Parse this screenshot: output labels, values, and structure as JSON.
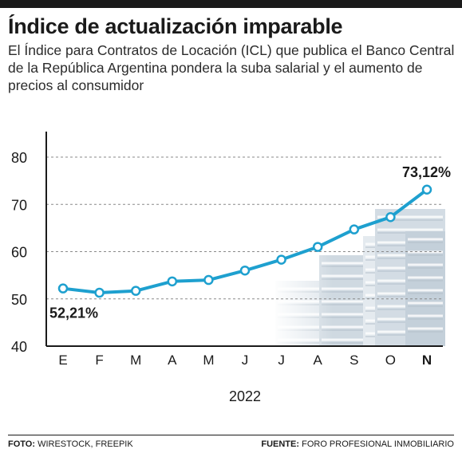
{
  "header": {
    "title": "Índice de actualización imparable",
    "subtitle": "El Índice para Contratos de Locación (ICL) que publica el Banco Central de la República Argentina pondera la suba salarial y el aumento de precios al consumidor"
  },
  "chart_data": {
    "type": "line",
    "title": "",
    "xlabel": "2022",
    "ylabel": "",
    "categories": [
      "E",
      "F",
      "M",
      "A",
      "M",
      "J",
      "J",
      "A",
      "S",
      "O",
      "N"
    ],
    "highlight_category_index": 10,
    "series": [
      {
        "values": [
          52.21,
          51.3,
          51.7,
          53.7,
          54.0,
          56.0,
          58.3,
          61.0,
          64.7,
          67.3,
          73.12
        ]
      }
    ],
    "ylim": [
      40,
      80
    ],
    "yticks": [
      40,
      50,
      60,
      70,
      80
    ],
    "grid": "dashed-horizontal",
    "annotations": [
      {
        "index": 0,
        "text": "52,21%"
      },
      {
        "index": 10,
        "text": "73,12%"
      }
    ],
    "line_color": "#1ea0cf",
    "marker_fill": "#ffffff"
  },
  "footer": {
    "photo_label": "FOTO:",
    "photo_value": "WIRESTOCK, FREEPIK",
    "source_label": "FUENTE:",
    "source_value": "FORO PROFESIONAL INMOBILIARIO"
  }
}
